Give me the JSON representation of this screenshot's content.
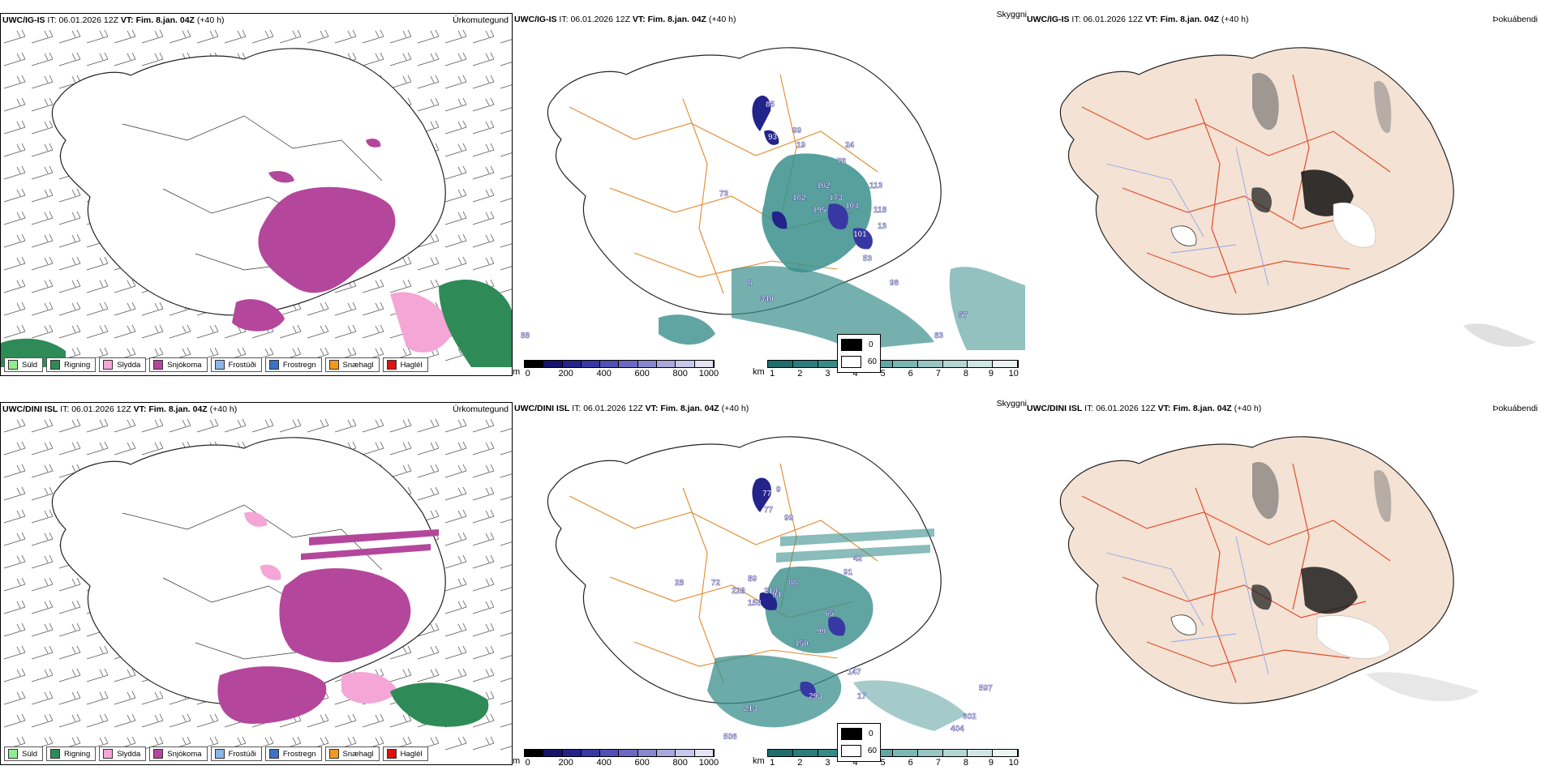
{
  "rows": [
    {
      "header": {
        "model": "UWC/IG-IS",
        "it_label": "IT:",
        "it_value": "06.01.2026 12Z",
        "vt_label": "VT:",
        "vt_value": "Fim. 8.jan. 04Z",
        "lead": "(+40 h)"
      }
    },
    {
      "header": {
        "model": "UWC/DINI ISL",
        "it_label": "IT:",
        "it_value": "06.01.2026 12Z",
        "vt_label": "VT:",
        "vt_value": "Fim. 8.jan. 04Z",
        "lead": "(+40 h)"
      }
    }
  ],
  "titles": {
    "precip_type": "Úrkomutegund",
    "cloud": "Skyggni",
    "fog": "Þokuábendi"
  },
  "precip_legend": [
    {
      "label": "Súld",
      "color": "#90ee90"
    },
    {
      "label": "Rigning",
      "color": "#2e8b57"
    },
    {
      "label": "Slydda",
      "color": "#f4a6d7"
    },
    {
      "label": "Snjókoma",
      "color": "#b4479c"
    },
    {
      "label": "Frostúði",
      "color": "#87b8e8"
    },
    {
      "label": "Frostregn",
      "color": "#3a72c4"
    },
    {
      "label": "Snæhagl",
      "color": "#f29a1f"
    },
    {
      "label": "Haglél",
      "color": "#e01010"
    }
  ],
  "cloudbase_bar": {
    "unit": "m",
    "ticks": [
      "0",
      "200",
      "400",
      "600",
      "800",
      "1000"
    ],
    "colors": [
      "#000000",
      "#14146b",
      "#23238c",
      "#3838a4",
      "#5050b5",
      "#6a6ac2",
      "#8888cf",
      "#a8a8dc",
      "#c8c8ea",
      "#e4e4f4"
    ]
  },
  "visibility_bar": {
    "unit": "km",
    "ticks": [
      "1",
      "2",
      "3",
      "4",
      "5",
      "6",
      "7",
      "8",
      "9",
      "10"
    ],
    "colors": [
      "#1f6e6e",
      "#2a7d7b",
      "#368b88",
      "#4a9896",
      "#62a7a4",
      "#7cb6b3",
      "#98c6c3",
      "#b4d6d3",
      "#d0e6e4",
      "#ecf5f4"
    ]
  },
  "fog_legend": [
    {
      "label": "0",
      "color": "#000000"
    },
    {
      "label": "60",
      "color": "#ffffff"
    }
  ],
  "cloud_labels_row1": [
    "85",
    "99",
    "93",
    "19",
    "76",
    "24",
    "73",
    "182",
    "102",
    "173",
    "195",
    "104",
    "113",
    "118",
    "13",
    "101",
    "53",
    "96",
    "340",
    "57",
    "88",
    "83",
    "8"
  ],
  "cloud_labels_row2": [
    "77",
    "9",
    "77",
    "99",
    "42",
    "91",
    "72",
    "89",
    "228",
    "88",
    "218",
    "94",
    "158",
    "65",
    "99",
    "150",
    "147",
    "17",
    "293",
    "213",
    "404",
    "302",
    "597",
    "506",
    "28"
  ]
}
